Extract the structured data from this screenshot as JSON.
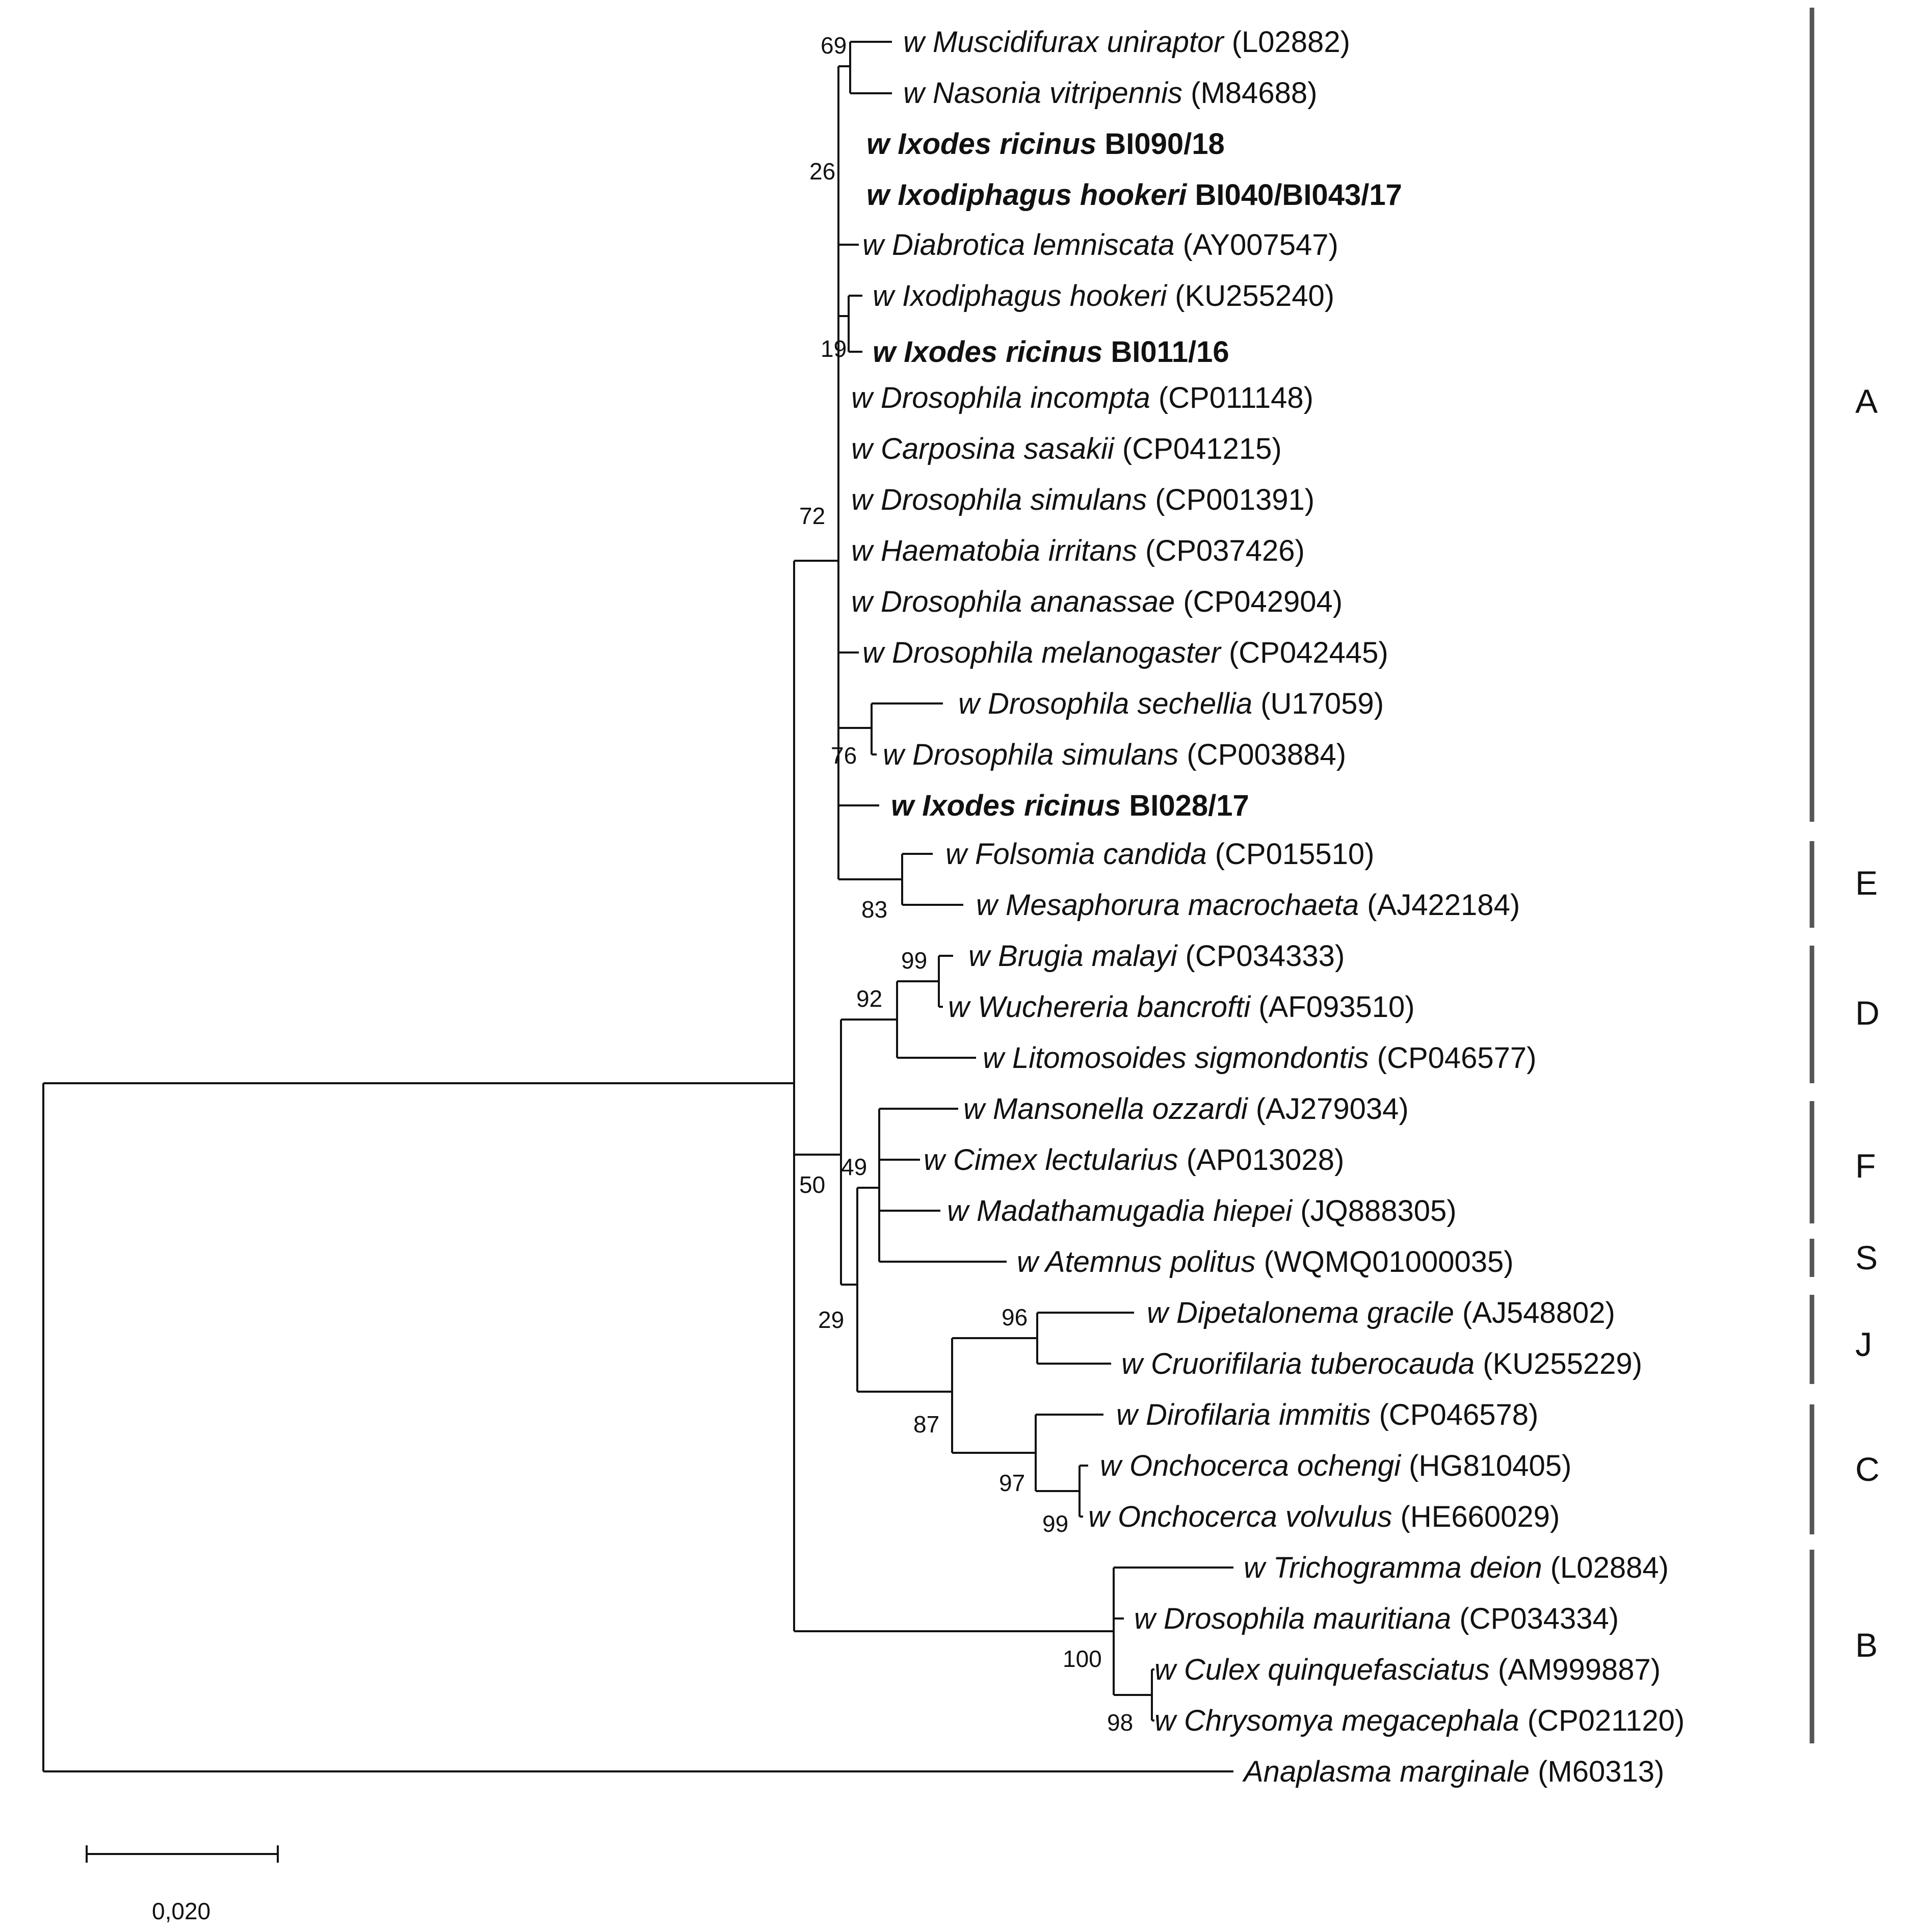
{
  "taxa": [
    {
      "prefix": "w",
      "name": "Muscidifurax uniraptor",
      "acc": "(L02882)",
      "highlight": false
    },
    {
      "prefix": "w",
      "name": "Nasonia vitripennis",
      "acc": "(M84688)",
      "highlight": false
    },
    {
      "prefix": "w",
      "name": "Ixodes ricinus",
      "acc": "BI090/18",
      "highlight": true
    },
    {
      "prefix": "w",
      "name": "Ixodiphagus hookeri",
      "acc": "BI040/BI043/17",
      "highlight": true
    },
    {
      "prefix": "w",
      "name": "Diabrotica lemniscata",
      "acc": "(AY007547)",
      "highlight": false
    },
    {
      "prefix": "w",
      "name": "Ixodiphagus hookeri",
      "acc": "(KU255240)",
      "highlight": false
    },
    {
      "prefix": "w",
      "name": "Ixodes ricinus",
      "acc": "BI011/16",
      "highlight": true
    },
    {
      "prefix": "w",
      "name": "Drosophila incompta",
      "acc": "(CP011148)",
      "highlight": false
    },
    {
      "prefix": "w",
      "name": "Carposina sasakii",
      "acc": "(CP041215)",
      "highlight": false
    },
    {
      "prefix": "w",
      "name": "Drosophila simulans",
      "acc": "(CP001391)",
      "highlight": false
    },
    {
      "prefix": "w",
      "name": "Haematobia irritans",
      "acc": "(CP037426)",
      "highlight": false
    },
    {
      "prefix": "w",
      "name": "Drosophila ananassae",
      "acc": "(CP042904)",
      "highlight": false
    },
    {
      "prefix": "w",
      "name": "Drosophila melanogaster",
      "acc": "(CP042445)",
      "highlight": false
    },
    {
      "prefix": "w",
      "name": "Drosophila sechellia",
      "acc": "(U17059)",
      "highlight": false
    },
    {
      "prefix": "w",
      "name": "Drosophila simulans",
      "acc": "(CP003884)",
      "highlight": false
    },
    {
      "prefix": "w",
      "name": "Ixodes ricinus",
      "acc": "BI028/17",
      "highlight": true
    },
    {
      "prefix": "w",
      "name": "Folsomia candida",
      "acc": "(CP015510)",
      "highlight": false
    },
    {
      "prefix": "w",
      "name": "Mesaphorura macrochaeta",
      "acc": "(AJ422184)",
      "highlight": false
    },
    {
      "prefix": "w",
      "name": "Brugia malayi",
      "acc": "(CP034333)",
      "highlight": false
    },
    {
      "prefix": "w",
      "name": "Wuchereria bancrofti",
      "acc": "(AF093510)",
      "highlight": false
    },
    {
      "prefix": "w",
      "name": "Litomosoides sigmondontis",
      "acc": "(CP046577)",
      "highlight": false
    },
    {
      "prefix": "w",
      "name": "Mansonella ozzardi",
      "acc": "(AJ279034)",
      "highlight": false
    },
    {
      "prefix": "w",
      "name": "Cimex lectularius",
      "acc": "(AP013028)",
      "highlight": false
    },
    {
      "prefix": "w",
      "name": "Madathamugadia hiepei",
      "acc": "(JQ888305)",
      "highlight": false
    },
    {
      "prefix": "w",
      "name": "Atemnus politus",
      "acc": "(WQMQ01000035)",
      "highlight": false
    },
    {
      "prefix": "w",
      "name": "Dipetalonema gracile",
      "acc": "(AJ548802)",
      "highlight": false
    },
    {
      "prefix": "w",
      "name": "Cruorifilaria tuberocauda",
      "acc": "(KU255229)",
      "highlight": false
    },
    {
      "prefix": "w",
      "name": "Dirofilaria immitis",
      "acc": "(CP046578)",
      "highlight": false
    },
    {
      "prefix": "w",
      "name": "Onchocerca ochengi",
      "acc": "(HG810405)",
      "highlight": false
    },
    {
      "prefix": "w",
      "name": "Onchocerca volvulus",
      "acc": "(HE660029)",
      "highlight": false
    },
    {
      "prefix": "w",
      "name": "Trichogramma deion",
      "acc": "(L02884)",
      "highlight": false
    },
    {
      "prefix": "w",
      "name": "Drosophila mauritiana",
      "acc": "(CP034334)",
      "highlight": false
    },
    {
      "prefix": "w",
      "name": "Culex quinquefasciatus",
      "acc": "(AM999887)",
      "highlight": false
    },
    {
      "prefix": "w",
      "name": "Chrysomya megacephala",
      "acc": "(CP021120)",
      "highlight": false
    },
    {
      "prefix": "",
      "name": "Anaplasma marginale",
      "acc": "(M60313)",
      "highlight": false
    }
  ],
  "bootstrap": [
    "69",
    "26",
    "19",
    "72",
    "76",
    "83",
    "99",
    "92",
    "49",
    "50",
    "29",
    "96",
    "87",
    "97",
    "99",
    "100",
    "98"
  ],
  "clades": [
    "A",
    "E",
    "D",
    "F",
    "S",
    "J",
    "C",
    "B"
  ],
  "scale": {
    "label": "0,020"
  }
}
